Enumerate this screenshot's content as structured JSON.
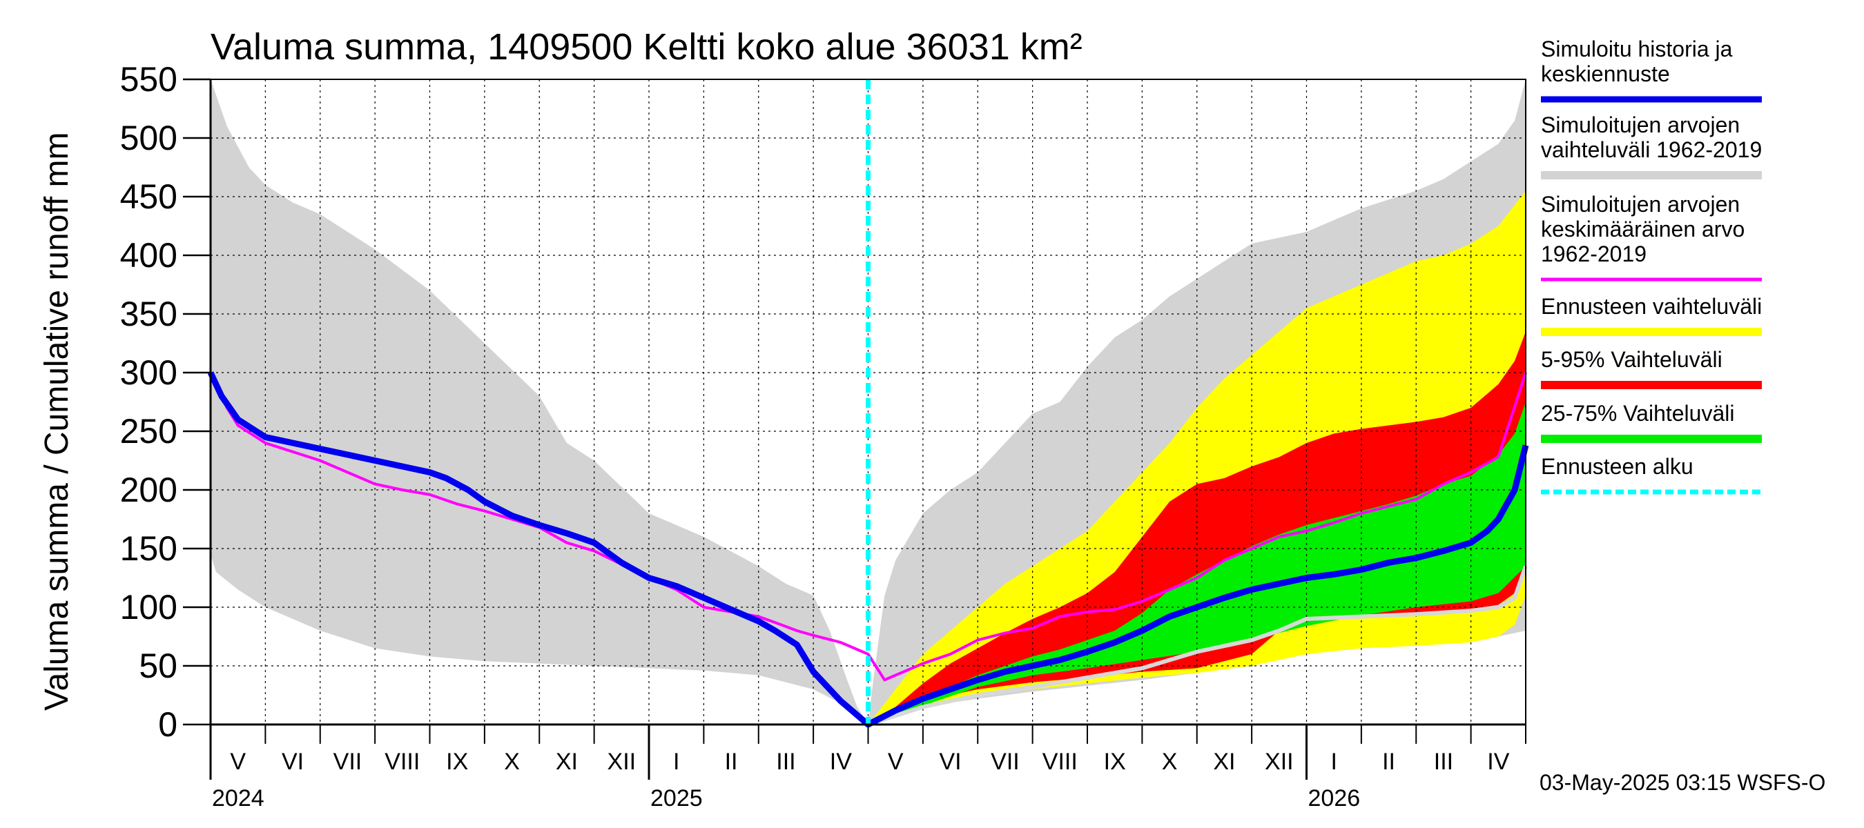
{
  "chart_data": {
    "type": "area",
    "title": "Valuma summa, 1409500 Keltti koko alue 36031 km²",
    "ylabel": "Valuma summa / Cumulative runoff    mm",
    "ylim": [
      0,
      550
    ],
    "yticks": [
      0,
      50,
      100,
      150,
      200,
      250,
      300,
      350,
      400,
      450,
      500,
      550
    ],
    "x_range_months": [
      0,
      24
    ],
    "month_labels": [
      "V",
      "VI",
      "VII",
      "VIII",
      "IX",
      "X",
      "XI",
      "XII",
      "I",
      "II",
      "III",
      "IV",
      "V",
      "VI",
      "VII",
      "VIII",
      "IX",
      "X",
      "XI",
      "XII",
      "I",
      "II",
      "III",
      "IV"
    ],
    "year_labels": [
      {
        "label": "2024",
        "month": 0
      },
      {
        "label": "2025",
        "month": 8
      },
      {
        "label": "2026",
        "month": 20
      }
    ],
    "forecast_start_month": 12,
    "colors": {
      "history_range": "#d3d3d3",
      "forecast_range": "#ffff00",
      "p5_95": "#ff0000",
      "p25_75": "#00ee00",
      "mean": "#ff00ff",
      "median": "#0000ee",
      "lower_line": "#d8d8d8",
      "forecast_start": "#00ffff",
      "grid": "#000000"
    },
    "series": [
      {
        "name": "hist_upper",
        "x": [
          0,
          0.3,
          0.7,
          1,
          1.5,
          2,
          3,
          4,
          5,
          6,
          6.5,
          7,
          8,
          9,
          10,
          10.5,
          11,
          11.3,
          11.6,
          11.8,
          12
        ],
        "values": [
          550,
          510,
          475,
          460,
          445,
          435,
          405,
          370,
          325,
          280,
          240,
          225,
          180,
          160,
          135,
          120,
          110,
          80,
          40,
          15,
          0
        ]
      },
      {
        "name": "hist_lower",
        "x": [
          0,
          0.1,
          0.5,
          1,
          2,
          3,
          4,
          5,
          6,
          7,
          8,
          9,
          10,
          11,
          11.5,
          12
        ],
        "values": [
          145,
          130,
          115,
          100,
          80,
          65,
          58,
          54,
          52,
          50,
          48,
          46,
          42,
          30,
          18,
          0
        ]
      },
      {
        "name": "fut_hist_upper",
        "x": [
          12,
          12.1,
          12.3,
          12.5,
          13,
          13.5,
          14,
          14.5,
          15,
          15.5,
          16,
          16.5,
          17,
          17.5,
          18,
          18.5,
          19,
          20,
          21,
          22,
          22.5,
          23,
          23.5,
          23.8,
          24
        ],
        "values": [
          0,
          40,
          110,
          140,
          180,
          200,
          215,
          240,
          265,
          275,
          305,
          330,
          345,
          365,
          380,
          395,
          410,
          420,
          440,
          455,
          465,
          480,
          495,
          515,
          550
        ]
      },
      {
        "name": "fut_hist_lower",
        "x": [
          12,
          13,
          14,
          15,
          16,
          17,
          18,
          19,
          20,
          21,
          22,
          23,
          23.5,
          24
        ],
        "values": [
          0,
          15,
          22,
          28,
          33,
          38,
          44,
          52,
          60,
          65,
          70,
          73,
          75,
          80
        ]
      },
      {
        "name": "forecast_upper",
        "x": [
          12,
          12.5,
          13,
          13.5,
          14,
          14.5,
          15,
          15.5,
          16,
          16.5,
          17,
          17.5,
          18,
          18.5,
          19,
          19.5,
          20,
          20.5,
          21,
          21.5,
          22,
          22.5,
          23,
          23.5,
          24
        ],
        "values": [
          0,
          30,
          60,
          80,
          100,
          120,
          135,
          150,
          165,
          190,
          215,
          240,
          270,
          295,
          315,
          335,
          355,
          365,
          375,
          385,
          395,
          400,
          410,
          425,
          455
        ]
      },
      {
        "name": "forecast_lower",
        "x": [
          12,
          13,
          14,
          15,
          16,
          17,
          18,
          19,
          20,
          21,
          22,
          23,
          23.5,
          23.8,
          24
        ],
        "values": [
          0,
          16,
          24,
          30,
          35,
          40,
          44,
          50,
          60,
          65,
          67,
          70,
          75,
          85,
          110
        ]
      },
      {
        "name": "p95",
        "x": [
          12,
          12.5,
          13,
          13.5,
          14,
          14.5,
          15,
          15.5,
          16,
          16.5,
          17,
          17.5,
          18,
          18.5,
          19,
          19.5,
          20,
          20.5,
          21,
          21.5,
          22,
          22.5,
          23,
          23.5,
          23.8,
          24
        ],
        "values": [
          0,
          15,
          35,
          52,
          65,
          78,
          90,
          100,
          112,
          130,
          160,
          190,
          205,
          210,
          220,
          228,
          240,
          248,
          252,
          255,
          258,
          262,
          270,
          290,
          310,
          335
        ]
      },
      {
        "name": "p5",
        "x": [
          12,
          13,
          14,
          15,
          16,
          17,
          18,
          19,
          19.5,
          20,
          21,
          22,
          23,
          23.5,
          23.8,
          24
        ],
        "values": [
          0,
          20,
          30,
          36,
          40,
          45,
          48,
          60,
          80,
          88,
          92,
          95,
          98,
          102,
          112,
          130
        ]
      },
      {
        "name": "p75",
        "x": [
          12,
          12.5,
          13,
          13.5,
          14,
          14.5,
          15,
          15.5,
          16,
          16.5,
          17,
          17.5,
          18,
          18.5,
          19,
          19.5,
          20,
          20.5,
          21,
          21.5,
          22,
          22.5,
          23,
          23.5,
          23.8,
          24
        ],
        "values": [
          0,
          12,
          22,
          32,
          42,
          50,
          58,
          64,
          72,
          80,
          95,
          115,
          128,
          140,
          152,
          162,
          170,
          176,
          182,
          188,
          195,
          205,
          212,
          230,
          248,
          275
        ]
      },
      {
        "name": "p25",
        "x": [
          12,
          13,
          14,
          15,
          16,
          17,
          18,
          19,
          20,
          21,
          22,
          23,
          23.5,
          24
        ],
        "values": [
          0,
          16,
          32,
          42,
          48,
          55,
          62,
          72,
          84,
          93,
          100,
          105,
          112,
          135
        ]
      },
      {
        "name": "Simuloitujen arvojen keskimääräinen arvo 1962-2019",
        "x": [
          0,
          0.1,
          0.3,
          0.5,
          1,
          2,
          2.5,
          3,
          3.5,
          4,
          4.5,
          5,
          6,
          6.5,
          7,
          8,
          8.5,
          9,
          10,
          10.3,
          10.7,
          11,
          11.5,
          12,
          12.3,
          12.6,
          13,
          13.5,
          14,
          14.5,
          15,
          15.5,
          16,
          16.5,
          17,
          17.5,
          18,
          18.5,
          19,
          19.5,
          20,
          20.5,
          21,
          21.5,
          22,
          22.5,
          23,
          23.5,
          24
        ],
        "values": [
          300,
          290,
          270,
          255,
          240,
          225,
          215,
          205,
          200,
          196,
          188,
          182,
          168,
          155,
          148,
          125,
          115,
          100,
          92,
          87,
          80,
          76,
          70,
          60,
          38,
          44,
          52,
          60,
          72,
          78,
          82,
          92,
          96,
          98,
          105,
          115,
          125,
          140,
          150,
          160,
          165,
          172,
          180,
          186,
          192,
          205,
          215,
          228,
          300
        ]
      },
      {
        "name": "Simuloitu historia ja keskiennuste",
        "x": [
          0,
          0.2,
          0.5,
          1,
          2,
          3,
          4,
          4.3,
          4.7,
          5,
          5.5,
          6,
          6.5,
          7,
          7.5,
          8,
          8.5,
          9,
          10,
          10.3,
          10.7,
          11,
          11.5,
          12,
          12.5,
          13,
          13.5,
          14,
          14.5,
          15,
          15.5,
          16,
          16.5,
          17,
          17.5,
          18,
          18.5,
          19,
          19.5,
          20,
          20.5,
          21,
          21.5,
          22,
          22.5,
          23,
          23.3,
          23.5,
          23.8,
          24
        ],
        "values": [
          300,
          280,
          260,
          245,
          235,
          225,
          215,
          210,
          200,
          190,
          178,
          170,
          163,
          155,
          138,
          125,
          118,
          108,
          88,
          80,
          68,
          45,
          20,
          0,
          12,
          22,
          30,
          38,
          45,
          50,
          55,
          62,
          70,
          80,
          92,
          100,
          108,
          115,
          120,
          125,
          128,
          132,
          138,
          142,
          148,
          155,
          165,
          175,
          200,
          238
        ]
      },
      {
        "name": "lower_line",
        "x": [
          12,
          13,
          14,
          15,
          15.5,
          16,
          17,
          17.5,
          18,
          19,
          19.5,
          20,
          21,
          22,
          23,
          23.5,
          23.8,
          24
        ],
        "values": [
          0,
          15,
          25,
          32,
          36,
          40,
          48,
          55,
          62,
          72,
          80,
          90,
          92,
          94,
          97,
          100,
          108,
          135
        ]
      }
    ],
    "legend": [
      {
        "key": "median",
        "label_lines": [
          "Simuloitu historia ja",
          "keskiennuste"
        ]
      },
      {
        "key": "history_range",
        "label_lines": [
          "Simuloitujen arvojen",
          "vaihteluväli 1962-2019"
        ]
      },
      {
        "key": "mean",
        "label_lines": [
          "Simuloitujen arvojen",
          "keskimääräinen arvo",
          "   1962-2019"
        ]
      },
      {
        "key": "forecast_range",
        "label_lines": [
          "Ennusteen vaihteluväli"
        ]
      },
      {
        "key": "p5_95",
        "label_lines": [
          "5-95% Vaihteluväli"
        ]
      },
      {
        "key": "p25_75",
        "label_lines": [
          "25-75% Vaihteluväli"
        ]
      },
      {
        "key": "forecast_start",
        "label_lines": [
          "Ennusteen alku"
        ]
      }
    ]
  },
  "footer": "03-May-2025 03:15 WSFS-O"
}
